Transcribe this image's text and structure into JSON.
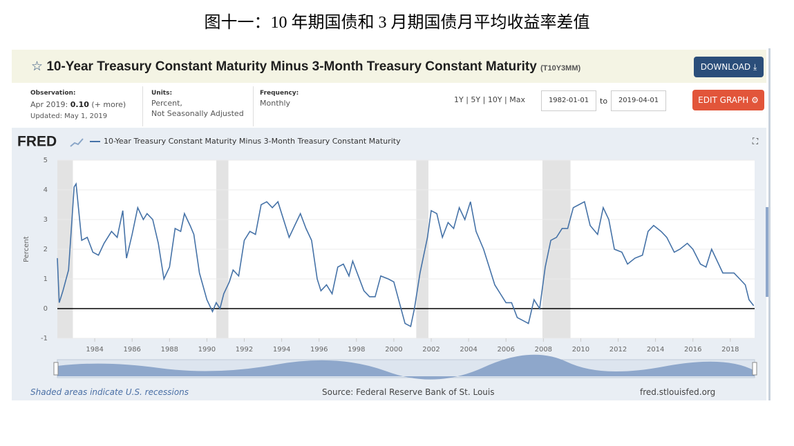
{
  "page": {
    "heading": "图十一：10 年期国债和 3 月期国债月平均收益率差值",
    "header": {
      "title": "10-Year Treasury Constant Maturity Minus 3-Month Treasury Constant Maturity",
      "code": "(T10Y3MM)",
      "download": "DOWNLOAD"
    },
    "info": {
      "observation_label": "Observation:",
      "observation_date": "Apr 2019:",
      "observation_value": "0.10",
      "observation_more": "(+ more)",
      "updated": "Updated: May 1, 2019",
      "units_label": "Units:",
      "units_1": "Percent,",
      "units_2": "Not Seasonally Adjusted",
      "frequency_label": "Frequency:",
      "frequency": "Monthly",
      "ranges": "1Y | 5Y | 10Y | Max",
      "start": "1982-01-01",
      "to": "to",
      "end": "2019-04-01",
      "edit": "EDIT GRAPH"
    },
    "footer": {
      "note": "Shaded areas indicate U.S. recessions",
      "source": "Source: Federal Reserve Bank of St. Louis",
      "site": "fred.stlouisfed.org"
    },
    "logo": "FRED"
  },
  "chart_data": {
    "type": "line",
    "y_label": "Percent",
    "x": [
      1982.0,
      1982.1,
      1982.3,
      1982.6,
      1982.9,
      1983.0,
      1983.3,
      1983.6,
      1983.9,
      1984.2,
      1984.5,
      1984.9,
      1985.2,
      1985.5,
      1985.7,
      1986.0,
      1986.3,
      1986.6,
      1986.8,
      1987.1,
      1987.4,
      1987.7,
      1988.0,
      1988.3,
      1988.6,
      1988.8,
      1989.1,
      1989.3,
      1989.6,
      1990.0,
      1990.3,
      1990.5,
      1990.7,
      1990.9,
      1991.2,
      1991.4,
      1991.7,
      1992.0,
      1992.3,
      1992.6,
      1992.9,
      1993.2,
      1993.5,
      1993.8,
      1994.1,
      1994.4,
      1994.7,
      1995.0,
      1995.3,
      1995.6,
      1995.9,
      1996.1,
      1996.4,
      1996.7,
      1997.0,
      1997.3,
      1997.6,
      1997.8,
      1998.1,
      1998.4,
      1998.7,
      1999.0,
      1999.3,
      1999.7,
      2000.0,
      2000.3,
      2000.6,
      2000.9,
      2001.1,
      2001.4,
      2001.8,
      2002.0,
      2002.3,
      2002.6,
      2002.9,
      2003.2,
      2003.5,
      2003.8,
      2004.1,
      2004.4,
      2004.8,
      2005.1,
      2005.4,
      2005.7,
      2006.0,
      2006.3,
      2006.6,
      2006.9,
      2007.2,
      2007.5,
      2007.8,
      2008.1,
      2008.4,
      2008.7,
      2009.0,
      2009.3,
      2009.6,
      2009.9,
      2010.2,
      2010.5,
      2010.9,
      2011.2,
      2011.5,
      2011.8,
      2012.2,
      2012.5,
      2012.9,
      2013.3,
      2013.6,
      2013.9,
      2014.3,
      2014.6,
      2015.0,
      2015.3,
      2015.7,
      2016.0,
      2016.4,
      2016.7,
      2017.0,
      2017.3,
      2017.6,
      2017.9,
      2018.2,
      2018.5,
      2018.8,
      2019.0,
      2019.25
    ],
    "series": [
      {
        "name": "10-Year Treasury Constant Maturity Minus 3-Month Treasury Constant Maturity",
        "color": "#4572a7",
        "values": [
          1.7,
          0.2,
          0.6,
          1.3,
          4.1,
          4.2,
          2.3,
          2.4,
          1.9,
          1.8,
          2.2,
          2.6,
          2.4,
          3.3,
          1.7,
          2.5,
          3.4,
          3.0,
          3.2,
          3.0,
          2.2,
          1.0,
          1.4,
          2.7,
          2.6,
          3.2,
          2.8,
          2.5,
          1.2,
          0.3,
          -0.1,
          0.2,
          0.0,
          0.5,
          0.9,
          1.3,
          1.1,
          2.3,
          2.6,
          2.5,
          3.5,
          3.6,
          3.4,
          3.6,
          3.0,
          2.4,
          2.8,
          3.2,
          2.7,
          2.3,
          1.0,
          0.6,
          0.8,
          0.5,
          1.4,
          1.5,
          1.1,
          1.6,
          1.1,
          0.6,
          0.4,
          0.4,
          1.1,
          1.0,
          0.9,
          0.2,
          -0.5,
          -0.6,
          0.0,
          1.2,
          2.4,
          3.3,
          3.2,
          2.4,
          2.9,
          2.7,
          3.4,
          3.0,
          3.6,
          2.6,
          2.0,
          1.4,
          0.8,
          0.5,
          0.2,
          0.2,
          -0.3,
          -0.4,
          -0.5,
          0.3,
          0.0,
          1.4,
          2.3,
          2.4,
          2.7,
          2.7,
          3.4,
          3.5,
          3.6,
          2.8,
          2.5,
          3.4,
          3.0,
          2.0,
          1.9,
          1.5,
          1.7,
          1.8,
          2.6,
          2.8,
          2.6,
          2.4,
          1.9,
          2.0,
          2.2,
          2.0,
          1.5,
          1.4,
          2.0,
          1.6,
          1.2,
          1.2,
          1.2,
          1.0,
          0.8,
          0.3,
          0.1
        ]
      }
    ],
    "recessions": [
      [
        1982.0,
        1982.83
      ],
      [
        1990.5,
        1991.15
      ],
      [
        2001.2,
        2001.85
      ],
      [
        2007.95,
        2009.45
      ]
    ],
    "xlim": [
      1982.0,
      2019.3
    ],
    "ylim": [
      -1,
      5
    ],
    "xticks": [
      1984,
      1986,
      1988,
      1990,
      1992,
      1994,
      1996,
      1998,
      2000,
      2002,
      2004,
      2006,
      2008,
      2010,
      2012,
      2014,
      2016,
      2018
    ],
    "yticks": [
      -1,
      0,
      1,
      2,
      3,
      4,
      5
    ],
    "grid": true,
    "zero_line": 0
  }
}
